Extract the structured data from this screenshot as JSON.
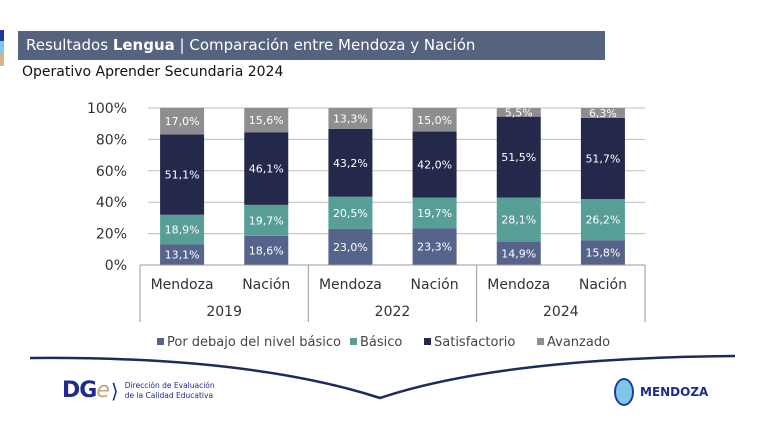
{
  "header": {
    "title_prefix": "Resultados ",
    "title_bold": "Lengua",
    "title_rest": " | Comparación entre Mendoza y Nación",
    "subtitle": "Operativo Aprender Secundaria 2024"
  },
  "footer": {
    "logo_text": "DG",
    "logo_e": "e",
    "org_line1": "Dirección de Evaluación",
    "org_line2": "de la Calidad Educativa",
    "province": "MENDOZA"
  },
  "chart_data": {
    "type": "stacked-bar",
    "ylim": [
      0,
      100
    ],
    "yticks": [
      "0%",
      "20%",
      "40%",
      "60%",
      "80%",
      "100%"
    ],
    "groups": [
      "2019",
      "2022",
      "2024"
    ],
    "categories": [
      "Mendoza",
      "Nación",
      "Mendoza",
      "Nación",
      "Mendoza",
      "Nación"
    ],
    "series": [
      {
        "name": "Por debajo del nivel básico",
        "color": "#56648c",
        "values": [
          13.1,
          18.6,
          23.0,
          23.3,
          14.9,
          15.8
        ],
        "labels": [
          "13,1%",
          "18,6%",
          "23,0%",
          "23,3%",
          "14,9%",
          "15,8%"
        ]
      },
      {
        "name": "Básico",
        "color": "#579e97",
        "values": [
          18.9,
          19.7,
          20.5,
          19.7,
          28.1,
          26.2
        ],
        "labels": [
          "18,9%",
          "19,7%",
          "20,5%",
          "19,7%",
          "28,1%",
          "26,2%"
        ]
      },
      {
        "name": "Satisfactorio",
        "color": "#24284a",
        "values": [
          51.1,
          46.1,
          43.2,
          42.0,
          51.5,
          51.7
        ],
        "labels": [
          "51,1%",
          "46,1%",
          "43,2%",
          "42,0%",
          "51,5%",
          "51,7%"
        ]
      },
      {
        "name": "Avanzado",
        "color": "#8e8e90",
        "values": [
          17.0,
          15.6,
          13.3,
          15.0,
          5.5,
          6.3
        ],
        "labels": [
          "17,0%",
          "15,6%",
          "13,3%",
          "15,0%",
          "5,5%",
          "6,3%"
        ]
      }
    ],
    "grid": true,
    "legend": "bottom"
  }
}
